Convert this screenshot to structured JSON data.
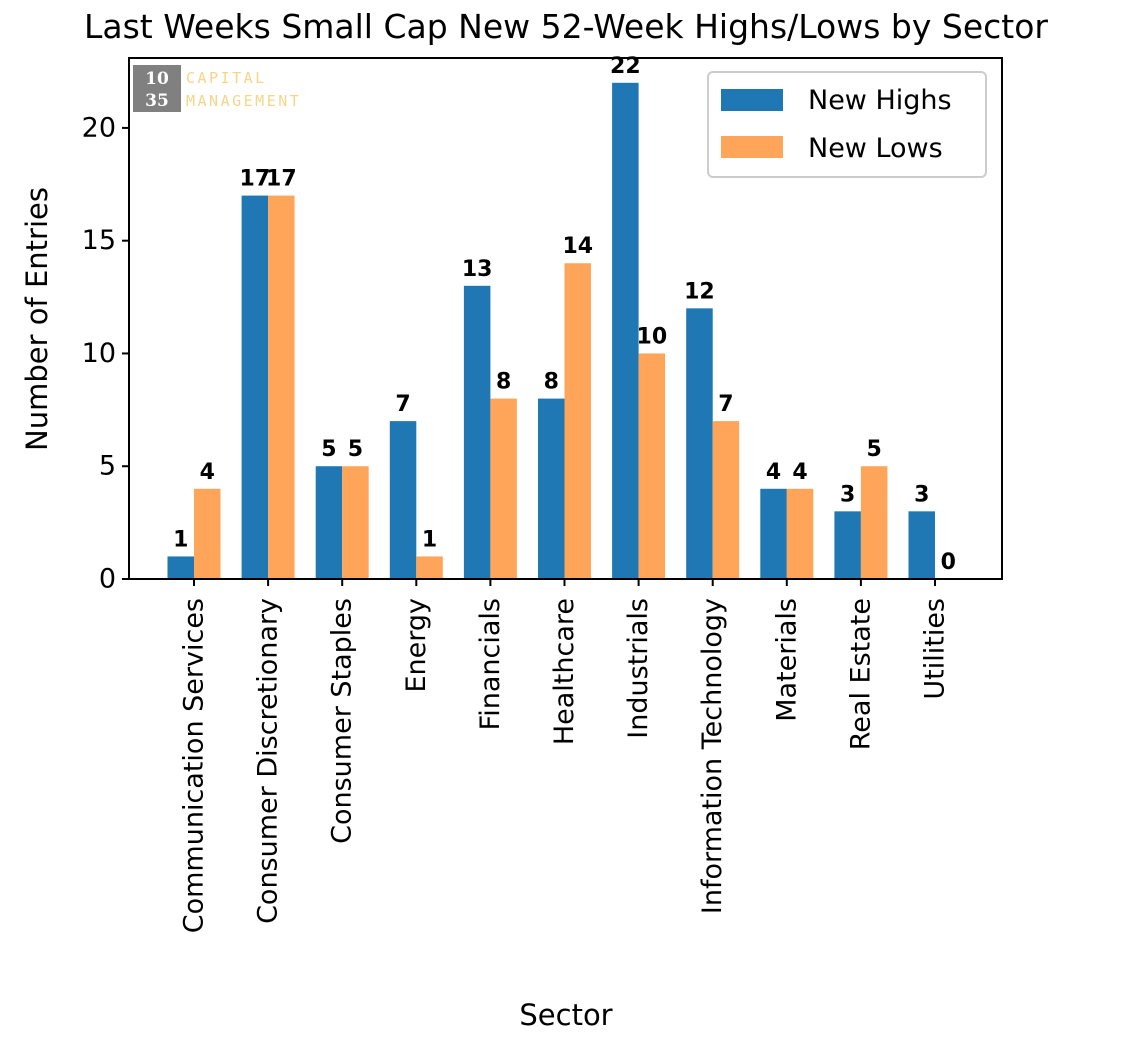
{
  "chart_data": {
    "type": "bar",
    "title": "Last Weeks Small Cap New 52-Week Highs/Lows by Sector",
    "xlabel": "Sector",
    "ylabel": "Number of Entries",
    "ylim": [
      0,
      23.1
    ],
    "yticks": [
      0,
      5,
      10,
      15,
      20
    ],
    "grid": false,
    "legend_position": "top-right",
    "categories": [
      "Communication Services",
      "Consumer Discretionary",
      "Consumer Staples",
      "Energy",
      "Financials",
      "Healthcare",
      "Industrials",
      "Information Technology",
      "Materials",
      "Real Estate",
      "Utilities"
    ],
    "series": [
      {
        "name": "New Highs",
        "color": "#1f77b4",
        "values": [
          1,
          17,
          5,
          7,
          13,
          8,
          22,
          12,
          4,
          3,
          3
        ]
      },
      {
        "name": "New Lows",
        "color": "#ffa55a",
        "values": [
          4,
          17,
          5,
          1,
          8,
          14,
          10,
          7,
          4,
          5,
          0
        ]
      }
    ]
  },
  "logo": {
    "number_top": "10",
    "number_bottom": "35",
    "line1": "CAPITAL",
    "line2": "MANAGEMENT",
    "box_color": "#808080",
    "text_color": "#f5d58a"
  }
}
